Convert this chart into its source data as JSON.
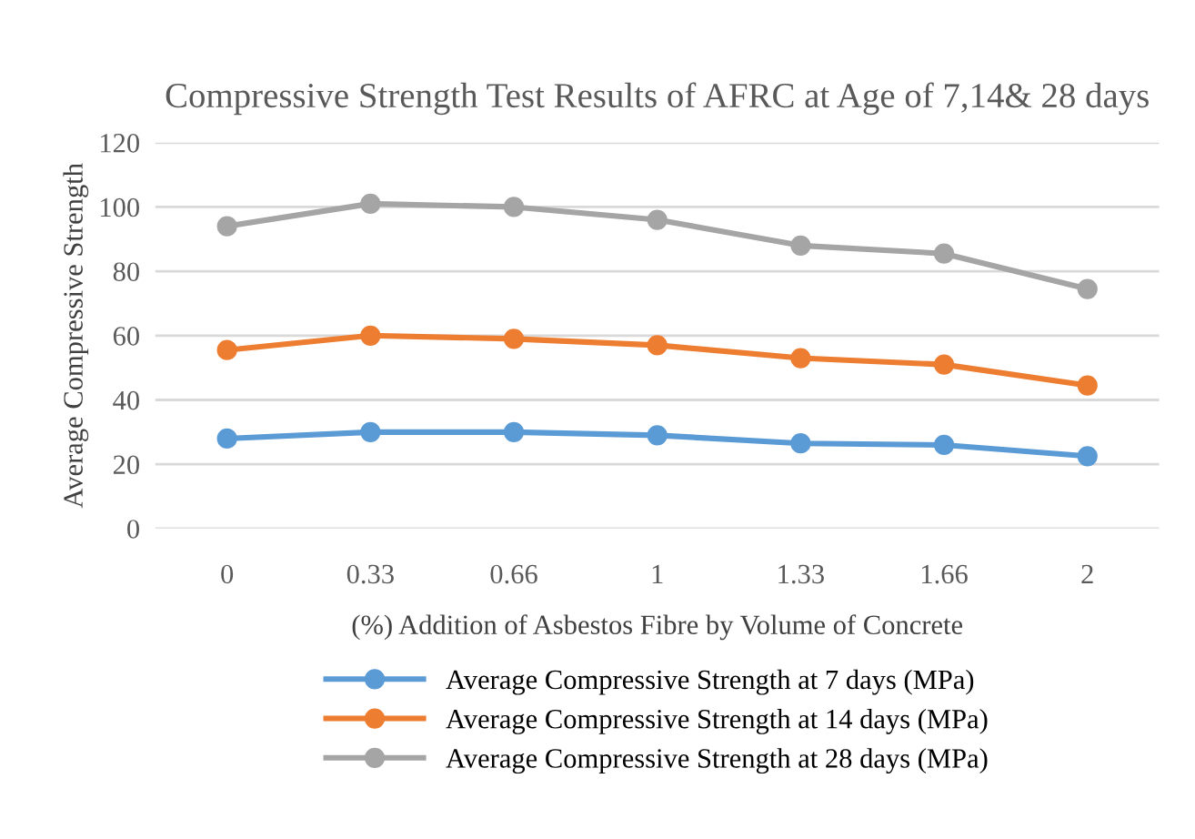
{
  "chart_data": {
    "type": "line",
    "title": "Compressive Strength Test Results of AFRC at Age of 7,14& 28 days",
    "xlabel": "(%) Addition of Asbestos Fibre by Volume of Concrete",
    "ylabel": "Average Compressive Strength",
    "categories": [
      "0",
      "0.33",
      "0.66",
      "1",
      "1.33",
      "1.66",
      "2"
    ],
    "series": [
      {
        "name": "Average Compressive Strength at 7 days (MPa)",
        "color": "#5b9bd5",
        "values": [
          28,
          30,
          30,
          29,
          26.5,
          26,
          22.5
        ]
      },
      {
        "name": "Average Compressive Strength at 14 days (MPa)",
        "color": "#ed7d31",
        "values": [
          55.5,
          60,
          59,
          57,
          53,
          51,
          44.5
        ]
      },
      {
        "name": "Average Compressive Strength at 28 days (MPa)",
        "color": "#a5a5a5",
        "values": [
          94,
          101,
          100,
          96,
          88,
          85.5,
          74.5
        ]
      }
    ],
    "ylim": [
      0,
      120
    ],
    "yticks": [
      0,
      20,
      40,
      60,
      80,
      100,
      120
    ],
    "grid": "y",
    "legend": "bottom",
    "marker": "circle",
    "line_style": "solid"
  }
}
